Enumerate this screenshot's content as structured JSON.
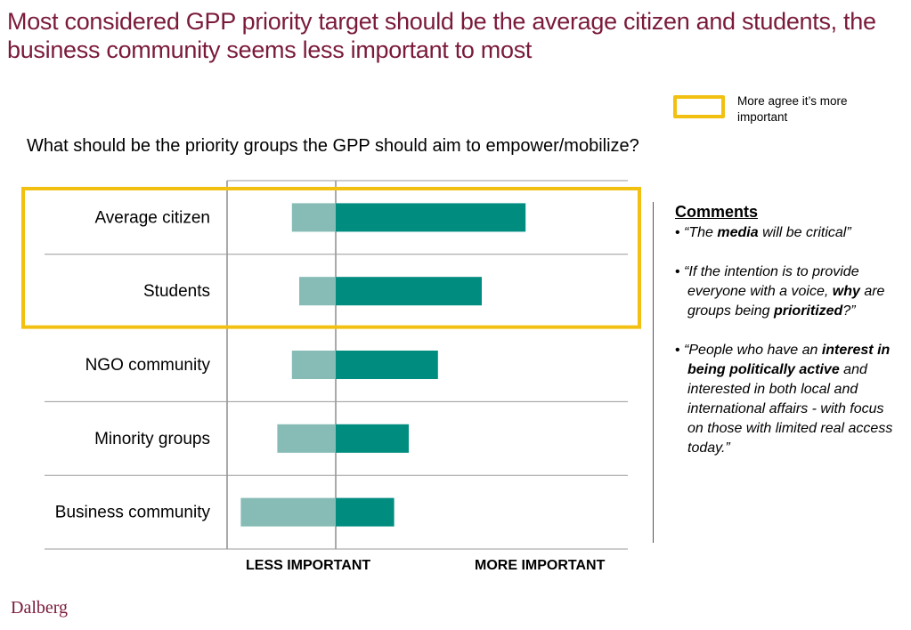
{
  "title": "Most considered GPP priority target should be the average citizen and students, the business community seems less important to most",
  "question": "What should be the priority groups the GPP should aim to empower/mobilize?",
  "legend": {
    "label": "More agree  it’s more important",
    "color": "#f2c010"
  },
  "comments": {
    "title": "Comments",
    "items": [
      [
        {
          "t": "“The ",
          "b": false
        },
        {
          "t": "media",
          "b": true
        },
        {
          "t": " will be critical”",
          "b": false
        }
      ],
      [
        {
          "t": "“If the intention is to provide everyone with a voice, ",
          "b": false
        },
        {
          "t": "why",
          "b": true
        },
        {
          "t": " are groups being ",
          "b": false
        },
        {
          "t": "prioritized",
          "b": true
        },
        {
          "t": "?”",
          "b": false
        }
      ],
      [
        {
          "t": "“People who have an ",
          "b": false
        },
        {
          "t": "interest in being politically active",
          "b": true
        },
        {
          "t": " and interested in both local and international affairs - with focus on those with limited real access today.”",
          "b": false
        }
      ]
    ]
  },
  "axis": {
    "less_label": "LESS IMPORTANT",
    "more_label": "MORE IMPORTANT"
  },
  "logo_text": "Dalberg",
  "chart_data": {
    "type": "bar",
    "orientation": "horizontal-diverging",
    "categories": [
      "Average citizen",
      "Students",
      "NGO community",
      "Minority groups",
      "Business community"
    ],
    "series": [
      {
        "values": [
          -15,
          -12.5,
          -15,
          -20,
          -32.5
        ],
        "color": "#86bcb5"
      },
      {
        "values": [
          65,
          50,
          35,
          25,
          20
        ],
        "color": "#008c7f"
      }
    ],
    "xlim": [
      -40,
      100
    ],
    "highlighted_categories": [
      "Average citizen",
      "Students"
    ],
    "highlight_color": "#f2c010"
  }
}
